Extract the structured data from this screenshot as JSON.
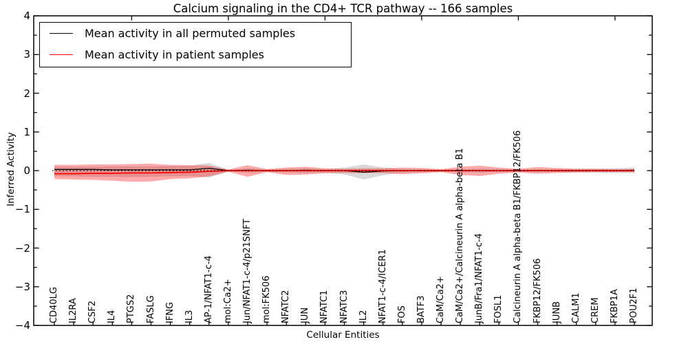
{
  "title": "Calcium signaling in the CD4+ TCR pathway -- 166 samples",
  "legend": {
    "items": [
      {
        "label": "Mean activity in all permuted samples",
        "color": "#000000"
      },
      {
        "label": "Mean activity in patient samples",
        "color": "#ff0000"
      }
    ]
  },
  "axes": {
    "ylabel": "Inferred Activity",
    "xlabel": "Cellular Entities"
  },
  "chart_data": {
    "type": "line",
    "title": "Calcium signaling in the CD4+ TCR pathway -- 166 samples",
    "xlabel": "Cellular Entities",
    "ylabel": "Inferred Activity",
    "ylim": [
      -4,
      4
    ],
    "yticks": [
      -4,
      -3,
      -2,
      -1,
      0,
      1,
      2,
      3,
      4
    ],
    "y_minor_tick_step": 0.5,
    "top_axis_tick_indices": [
      4,
      9,
      14,
      19,
      24,
      29
    ],
    "grid": false,
    "legend_position": "upper left",
    "categories": [
      "CD40LG",
      "IL2RA",
      "CSF2",
      "IL4",
      "PTGS2",
      "FASLG",
      "IFNG",
      "IL3",
      "AP-1/NFAT1-c-4",
      "mol:Ca2+",
      "Jun/NFAT1-c-4/p21SNFT",
      "mol:FK506",
      "NFATC2",
      "JUN",
      "NFATC1",
      "NFATC3",
      "IL2",
      "NFAT1-c-4/ICER1",
      "FOS",
      "BATF3",
      "CaM/Ca2+",
      "CaM/Ca2+/Calcineurin A alpha-beta B1",
      "JunB/Fra1/NFAT1-c-4",
      "FOSL1",
      "Calcineurin A alpha-beta B1/FKBP12/FK506",
      "FKBP12/FK506",
      "JUNB",
      "CALM1",
      "CREM",
      "FKBP1A",
      "POU2F1"
    ],
    "series": [
      {
        "name": "Permuted samples band",
        "type": "band",
        "color": "#777777",
        "opacity": 0.28,
        "upper": [
          0.1,
          0.1,
          0.1,
          0.11,
          0.11,
          0.11,
          0.12,
          0.13,
          0.2,
          0.02,
          0.06,
          0.03,
          0.05,
          0.06,
          0.04,
          0.08,
          0.16,
          0.08,
          0.04,
          0.04,
          0.03,
          0.04,
          0.05,
          0.04,
          0.03,
          0.04,
          0.04,
          0.05,
          0.05,
          0.06,
          0.08
        ],
        "lower": [
          -0.15,
          -0.15,
          -0.16,
          -0.16,
          -0.17,
          -0.16,
          -0.15,
          -0.14,
          -0.18,
          -0.02,
          -0.06,
          -0.03,
          -0.05,
          -0.06,
          -0.05,
          -0.1,
          -0.23,
          -0.12,
          -0.05,
          -0.04,
          -0.03,
          -0.04,
          -0.05,
          -0.04,
          -0.03,
          -0.04,
          -0.04,
          -0.05,
          -0.05,
          -0.06,
          -0.06
        ]
      },
      {
        "name": "Patient samples band",
        "type": "band",
        "color": "#ff0000",
        "opacity": 0.33,
        "upper": [
          0.15,
          0.15,
          0.16,
          0.16,
          0.17,
          0.18,
          0.15,
          0.14,
          0.13,
          0.03,
          0.14,
          0.04,
          0.08,
          0.1,
          0.06,
          0.05,
          0.06,
          0.06,
          0.08,
          0.07,
          0.04,
          0.1,
          0.13,
          0.08,
          0.05,
          0.09,
          0.07,
          0.05,
          0.05,
          0.04,
          0.04
        ],
        "lower": [
          -0.22,
          -0.23,
          -0.24,
          -0.26,
          -0.29,
          -0.28,
          -0.22,
          -0.2,
          -0.15,
          -0.03,
          -0.16,
          -0.04,
          -0.11,
          -0.1,
          -0.07,
          -0.06,
          -0.06,
          -0.06,
          -0.09,
          -0.07,
          -0.04,
          -0.11,
          -0.14,
          -0.08,
          -0.05,
          -0.08,
          -0.06,
          -0.05,
          -0.04,
          -0.04,
          -0.04
        ]
      },
      {
        "name": "Mean activity in all permuted samples",
        "type": "line",
        "color": "#000000",
        "width": 1.3,
        "style": "solid",
        "values": [
          0.03,
          0.03,
          0.03,
          0.02,
          0.02,
          0.02,
          0.02,
          0.02,
          0.06,
          0.0,
          0.01,
          0.0,
          0.0,
          0.01,
          0.0,
          0.0,
          -0.04,
          -0.01,
          0.0,
          0.0,
          0.0,
          0.0,
          0.0,
          0.0,
          0.0,
          0.0,
          0.0,
          0.0,
          0.0,
          0.0,
          0.01
        ]
      },
      {
        "name": "Mean activity in patient samples",
        "type": "line",
        "color": "#ff0000",
        "width": 1.8,
        "style": "solid",
        "values": [
          -0.08,
          -0.08,
          -0.07,
          -0.07,
          -0.06,
          -0.06,
          -0.05,
          -0.04,
          -0.02,
          0.0,
          0.0,
          0.0,
          0.0,
          0.0,
          0.0,
          0.0,
          0.0,
          0.0,
          0.0,
          0.0,
          0.0,
          0.0,
          0.0,
          0.0,
          0.0,
          0.0,
          0.0,
          0.0,
          0.0,
          0.0,
          0.0
        ]
      },
      {
        "name": "Zero reference",
        "type": "refline",
        "color": "#000000",
        "width": 1.3,
        "style": "dotted",
        "value": 0
      }
    ]
  }
}
